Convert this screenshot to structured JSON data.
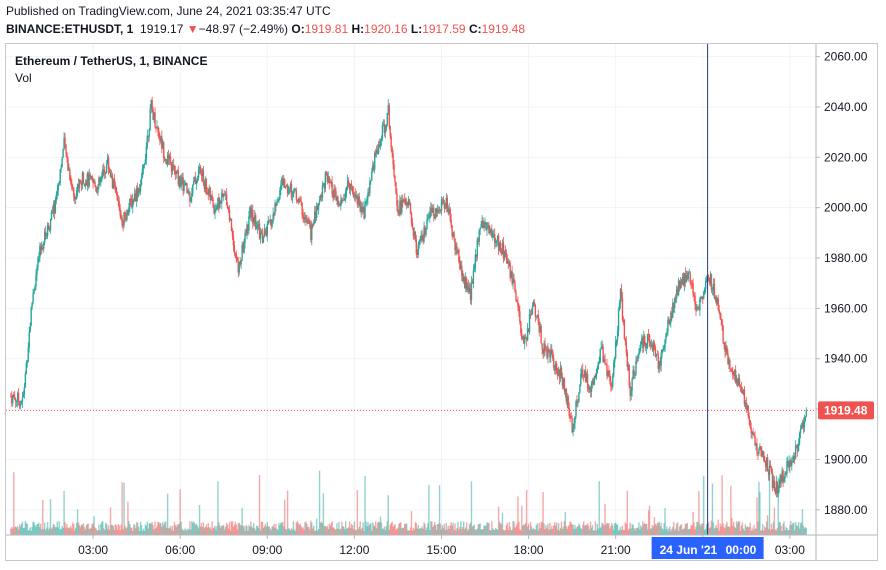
{
  "header": {
    "published": "Published on TradingView.com, June 24, 2021 03:35:47 UTC",
    "symbol": "BINANCE:ETHUSDT, 1",
    "last": "1919.17",
    "arrow": "▼",
    "change": "−48.97 (−2.49%)",
    "o_label": "O:",
    "o_value": "1919.81",
    "h_label": "H:",
    "h_value": "1920.16",
    "l_label": "L:",
    "l_value": "1917.59",
    "c_label": "C:",
    "c_value": "1919.48"
  },
  "legend": {
    "title": "Ethereum / TetherUS, 1, BINANCE",
    "vol": "Vol"
  },
  "colors": {
    "up": "#26a69a",
    "down": "#ef5350",
    "crosshair": "#2962ff",
    "price_label_bg": "#ef5350",
    "time_label_bg": "#2962ff"
  },
  "chart_data": {
    "type": "candlestick",
    "symbol": "ETHUSDT",
    "interval": "1",
    "ylim": [
      1870,
      2065
    ],
    "y_ticks": [
      "2060.00",
      "2040.00",
      "2020.00",
      "2000.00",
      "1980.00",
      "1960.00",
      "1940.00",
      "1920.00",
      "1900.00",
      "1880.00"
    ],
    "x_ticks": [
      "03:00",
      "06:00",
      "09:00",
      "12:00",
      "15:00",
      "18:00",
      "21:00",
      "00:00",
      "03:00"
    ],
    "date_label": "24 Jun '21",
    "time_label": "00:00",
    "last_price_label": "1919.48",
    "last_price": 1919.48,
    "series": [
      {
        "x": [
          "00:35",
          "00:55",
          "01:10",
          "01:40",
          "02:00",
          "02:20",
          "02:40",
          "03:10",
          "03:30",
          "04:00",
          "04:40",
          "05:00",
          "05:30",
          "05:55",
          "06:20",
          "06:40",
          "07:10",
          "07:35",
          "08:00",
          "08:25",
          "08:50",
          "09:10",
          "09:30",
          "10:00",
          "10:30",
          "11:00",
          "11:30",
          "11:50",
          "12:20",
          "12:40",
          "13:10",
          "13:30",
          "13:50",
          "14:10",
          "14:40",
          "15:10",
          "15:40",
          "16:00",
          "16:20",
          "16:50",
          "17:10",
          "17:30",
          "17:50",
          "18:10",
          "18:30",
          "18:50",
          "19:10",
          "19:30",
          "19:50",
          "20:10",
          "20:30",
          "20:50",
          "21:10",
          "21:30",
          "21:50",
          "22:10",
          "22:30",
          "22:50",
          "23:10",
          "23:30",
          "23:50",
          "00:10",
          "00:30",
          "00:50",
          "01:10",
          "01:30",
          "01:50",
          "02:10",
          "02:30",
          "02:50",
          "03:10",
          "03:35"
        ],
        "close": [
          1923,
          1965,
          1982,
          2000,
          2025,
          2005,
          2012,
          2008,
          2018,
          1995,
          2010,
          2040,
          2020,
          2012,
          2005,
          2015,
          2000,
          2005,
          1975,
          1998,
          1988,
          1995,
          2010,
          2005,
          1990,
          2012,
          2000,
          2010,
          1998,
          2018,
          2038,
          2000,
          2003,
          1982,
          1998,
          2002,
          1975,
          1965,
          1995,
          1988,
          1982,
          1968,
          1945,
          1962,
          1945,
          1940,
          1932,
          1912,
          1935,
          1928,
          1945,
          1928,
          1965,
          1928,
          1945,
          1948,
          1938,
          1955,
          1968,
          1975,
          1958,
          1975,
          1962,
          1940,
          1932,
          1922,
          1905,
          1900,
          1888,
          1895,
          1902,
          1919.48
        ]
      }
    ]
  }
}
